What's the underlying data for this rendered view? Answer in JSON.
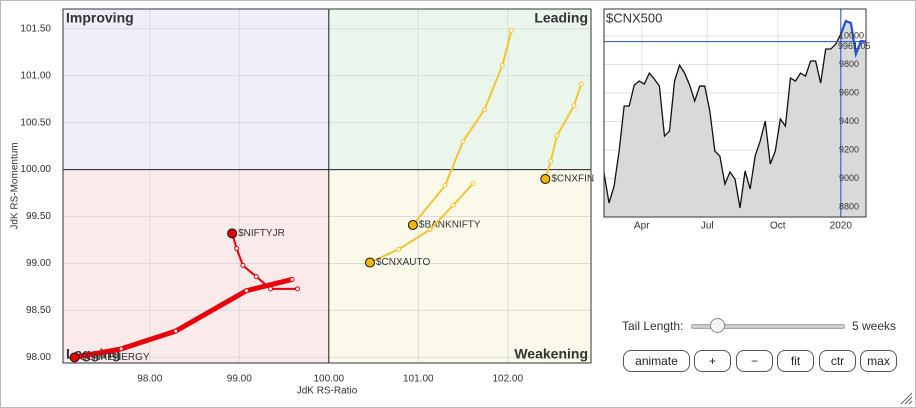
{
  "chart_data": [
    {
      "type": "rrg",
      "x_label": "JdK RS-Ratio",
      "y_label": "JdK RS-Momentum",
      "xlim": [
        97.03,
        102.93
      ],
      "ylim": [
        97.94,
        101.71
      ],
      "xticks": [
        {
          "value": 98,
          "label": "98.00"
        },
        {
          "value": 99,
          "label": "99.00"
        },
        {
          "value": 100,
          "label": "100.00"
        },
        {
          "value": 101,
          "label": "101.00"
        },
        {
          "value": 102,
          "label": "102.00"
        }
      ],
      "yticks": [
        {
          "value": 98,
          "label": "98.00"
        },
        {
          "value": 98.5,
          "label": "98.50"
        },
        {
          "value": 99,
          "label": "99.00"
        },
        {
          "value": 99.5,
          "label": "99.50"
        },
        {
          "value": 100,
          "label": "100.00"
        },
        {
          "value": 100.5,
          "label": "100.50"
        },
        {
          "value": 101,
          "label": "101.00"
        },
        {
          "value": 101.5,
          "label": "101.50"
        }
      ],
      "center": 100,
      "grid": true,
      "quadrants": {
        "improving": "Improving",
        "leading": "Leading",
        "weakening": "Weakening",
        "lagging": "Lagging"
      },
      "series": [
        {
          "name": "$CNXFIN",
          "color": "#f4c430",
          "head_color": "#f5b800",
          "line_width": 2,
          "x": [
            102.82,
            102.74,
            102.55,
            102.48,
            102.42
          ],
          "values": [
            100.91,
            100.68,
            100.36,
            100.09,
            99.9
          ]
        },
        {
          "name": "$BANKNIFTY",
          "color": "#f4c430",
          "head_color": "#f5b800",
          "line_width": 2,
          "x": [
            102.04,
            101.94,
            101.74,
            101.5,
            101.3,
            100.94
          ],
          "values": [
            101.48,
            101.11,
            100.64,
            100.3,
            99.83,
            99.41
          ]
        },
        {
          "name": "$CNXAUTO",
          "color": "#f4c430",
          "head_color": "#f5b800",
          "line_width": 2,
          "x": [
            101.61,
            101.39,
            101.13,
            100.78,
            100.46
          ],
          "values": [
            99.85,
            99.62,
            99.36,
            99.15,
            99.01
          ]
        },
        {
          "name": "$NIFTYJR",
          "color": "#e8000b",
          "head_color": "#e8000b",
          "line_width": 2,
          "x": [
            99.65,
            99.35,
            99.19,
            99.04,
            98.97,
            98.92
          ],
          "values": [
            98.73,
            98.73,
            98.86,
            98.98,
            99.16,
            99.32
          ]
        },
        {
          "name": "$CNXENERGY",
          "color": "#e8000b",
          "head_color": "#e8000b",
          "line_width": 5,
          "x": [
            99.59,
            99.08,
            98.29,
            97.68,
            97.16
          ],
          "values": [
            98.83,
            98.71,
            98.28,
            98.09,
            98.0
          ]
        }
      ]
    },
    {
      "type": "area",
      "title": "$CNX500",
      "values": [
        9039,
        8828,
        8947,
        9193,
        9509,
        9509,
        9656,
        9684,
        9663,
        9740,
        9698,
        9649,
        9298,
        9333,
        9684,
        9796,
        9740,
        9656,
        9544,
        9649,
        9649,
        9474,
        9193,
        9158,
        8961,
        9046,
        8996,
        8793,
        9053,
        8926,
        9158,
        9263,
        9404,
        9102,
        9193,
        9418,
        9368,
        9705,
        9684,
        9740,
        9719,
        9825,
        9825,
        9670,
        9909,
        9909,
        9944,
        10014,
        10105,
        10091,
        9874,
        9965,
        9961
      ],
      "color": "#111111",
      "fill": "#d9d9d9",
      "highlight_color": "#1f4fd6",
      "highlight_start": 47,
      "current_value": 9961.05,
      "xlim": [
        0,
        52
      ],
      "ylim": [
        8730,
        10190
      ],
      "xticks": [
        {
          "value": 7.5,
          "label": "Apr"
        },
        {
          "value": 20.5,
          "label": "Jul"
        },
        {
          "value": 34.5,
          "label": "Oct"
        },
        {
          "value": 47,
          "label": "2020"
        }
      ],
      "yticks": [
        8800,
        9000,
        9200,
        9400,
        9600,
        9800,
        10000
      ],
      "grid": true
    }
  ],
  "controls": {
    "tail_label": "Tail Length:",
    "tail_value": "5 weeks",
    "buttons": [
      "animate",
      "+",
      "−",
      "fit",
      "ctr",
      "max"
    ]
  }
}
